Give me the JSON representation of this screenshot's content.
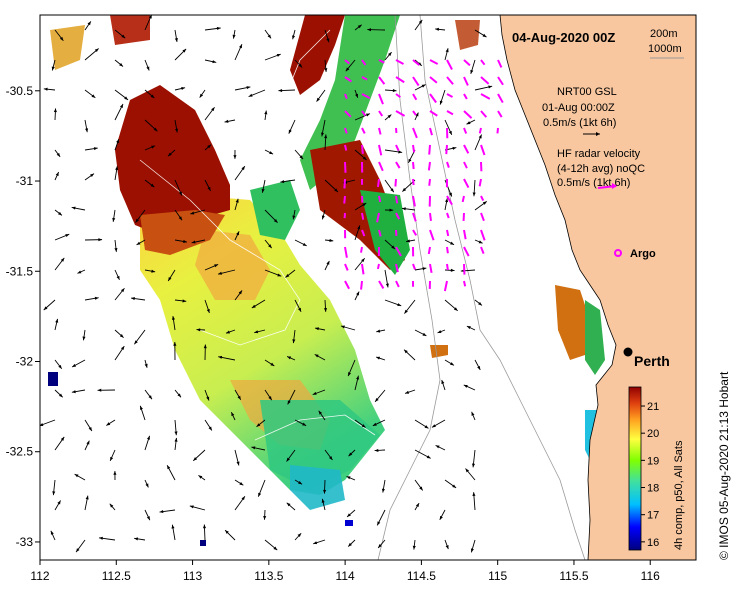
{
  "map": {
    "date_label": "04-Aug-2020 00Z",
    "contour_legend": [
      "200m",
      "1000m"
    ],
    "city": "Perth",
    "credit": "© IMOS 05-Aug-2020 21:13 Hobart",
    "colorbar": {
      "label": "4h comp, p50, All Sats",
      "ticks": [
        "16",
        "17",
        "18",
        "19",
        "20",
        "21"
      ]
    },
    "legend": {
      "gsl_title": "NRT00 GSL",
      "gsl_time": "01-Aug 00:00Z",
      "gsl_scale": "0.5m/s (1kt 6h)",
      "hf_title": "HF radar velocity",
      "hf_sub": "(4-12h avg) noQC",
      "hf_scale": "0.5m/s (1kt 6h)",
      "argo": "Argo"
    },
    "x_ticks": [
      "112",
      "112.5",
      "113",
      "113.5",
      "114",
      "114.5",
      "115",
      "115.5",
      "116"
    ],
    "y_ticks": [
      "-30.5",
      "-31",
      "-31.5",
      "-32",
      "-32.5",
      "-33"
    ],
    "colors": {
      "land": "#f8c7a0",
      "hf_vectors": "#ff00ff",
      "gsl_vectors": "#000000",
      "contour": "#9a9a9a"
    }
  }
}
